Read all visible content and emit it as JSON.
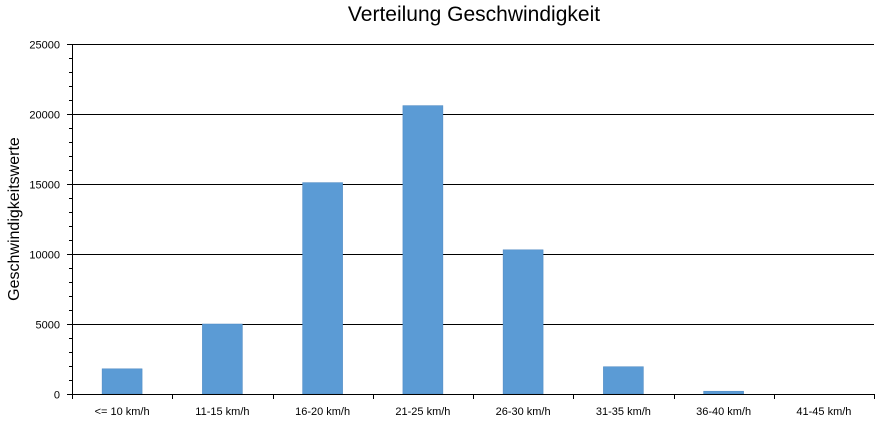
{
  "chart_data": {
    "type": "bar",
    "title": "Verteilung Geschwindigkeit",
    "xlabel": "",
    "ylabel": "Geschwindigkeitswerte",
    "categories": [
      "<= 10 km/h",
      "11-15 km/h",
      "16-20 km/h",
      "21-25 km/h",
      "26-30 km/h",
      "31-35 km/h",
      "36-40 km/h",
      "41-45 km/h"
    ],
    "values": [
      1800,
      5000,
      15100,
      20600,
      10300,
      1950,
      200,
      0
    ],
    "ylim": [
      0,
      25000
    ],
    "yticks": [
      0,
      5000,
      10000,
      15000,
      20000,
      25000
    ],
    "grid": true,
    "legend": "none",
    "colors": {
      "bar": "#5b9bd5",
      "bar_stroke": "#4a86bf",
      "grid": "#000000",
      "axis": "#000000"
    }
  }
}
